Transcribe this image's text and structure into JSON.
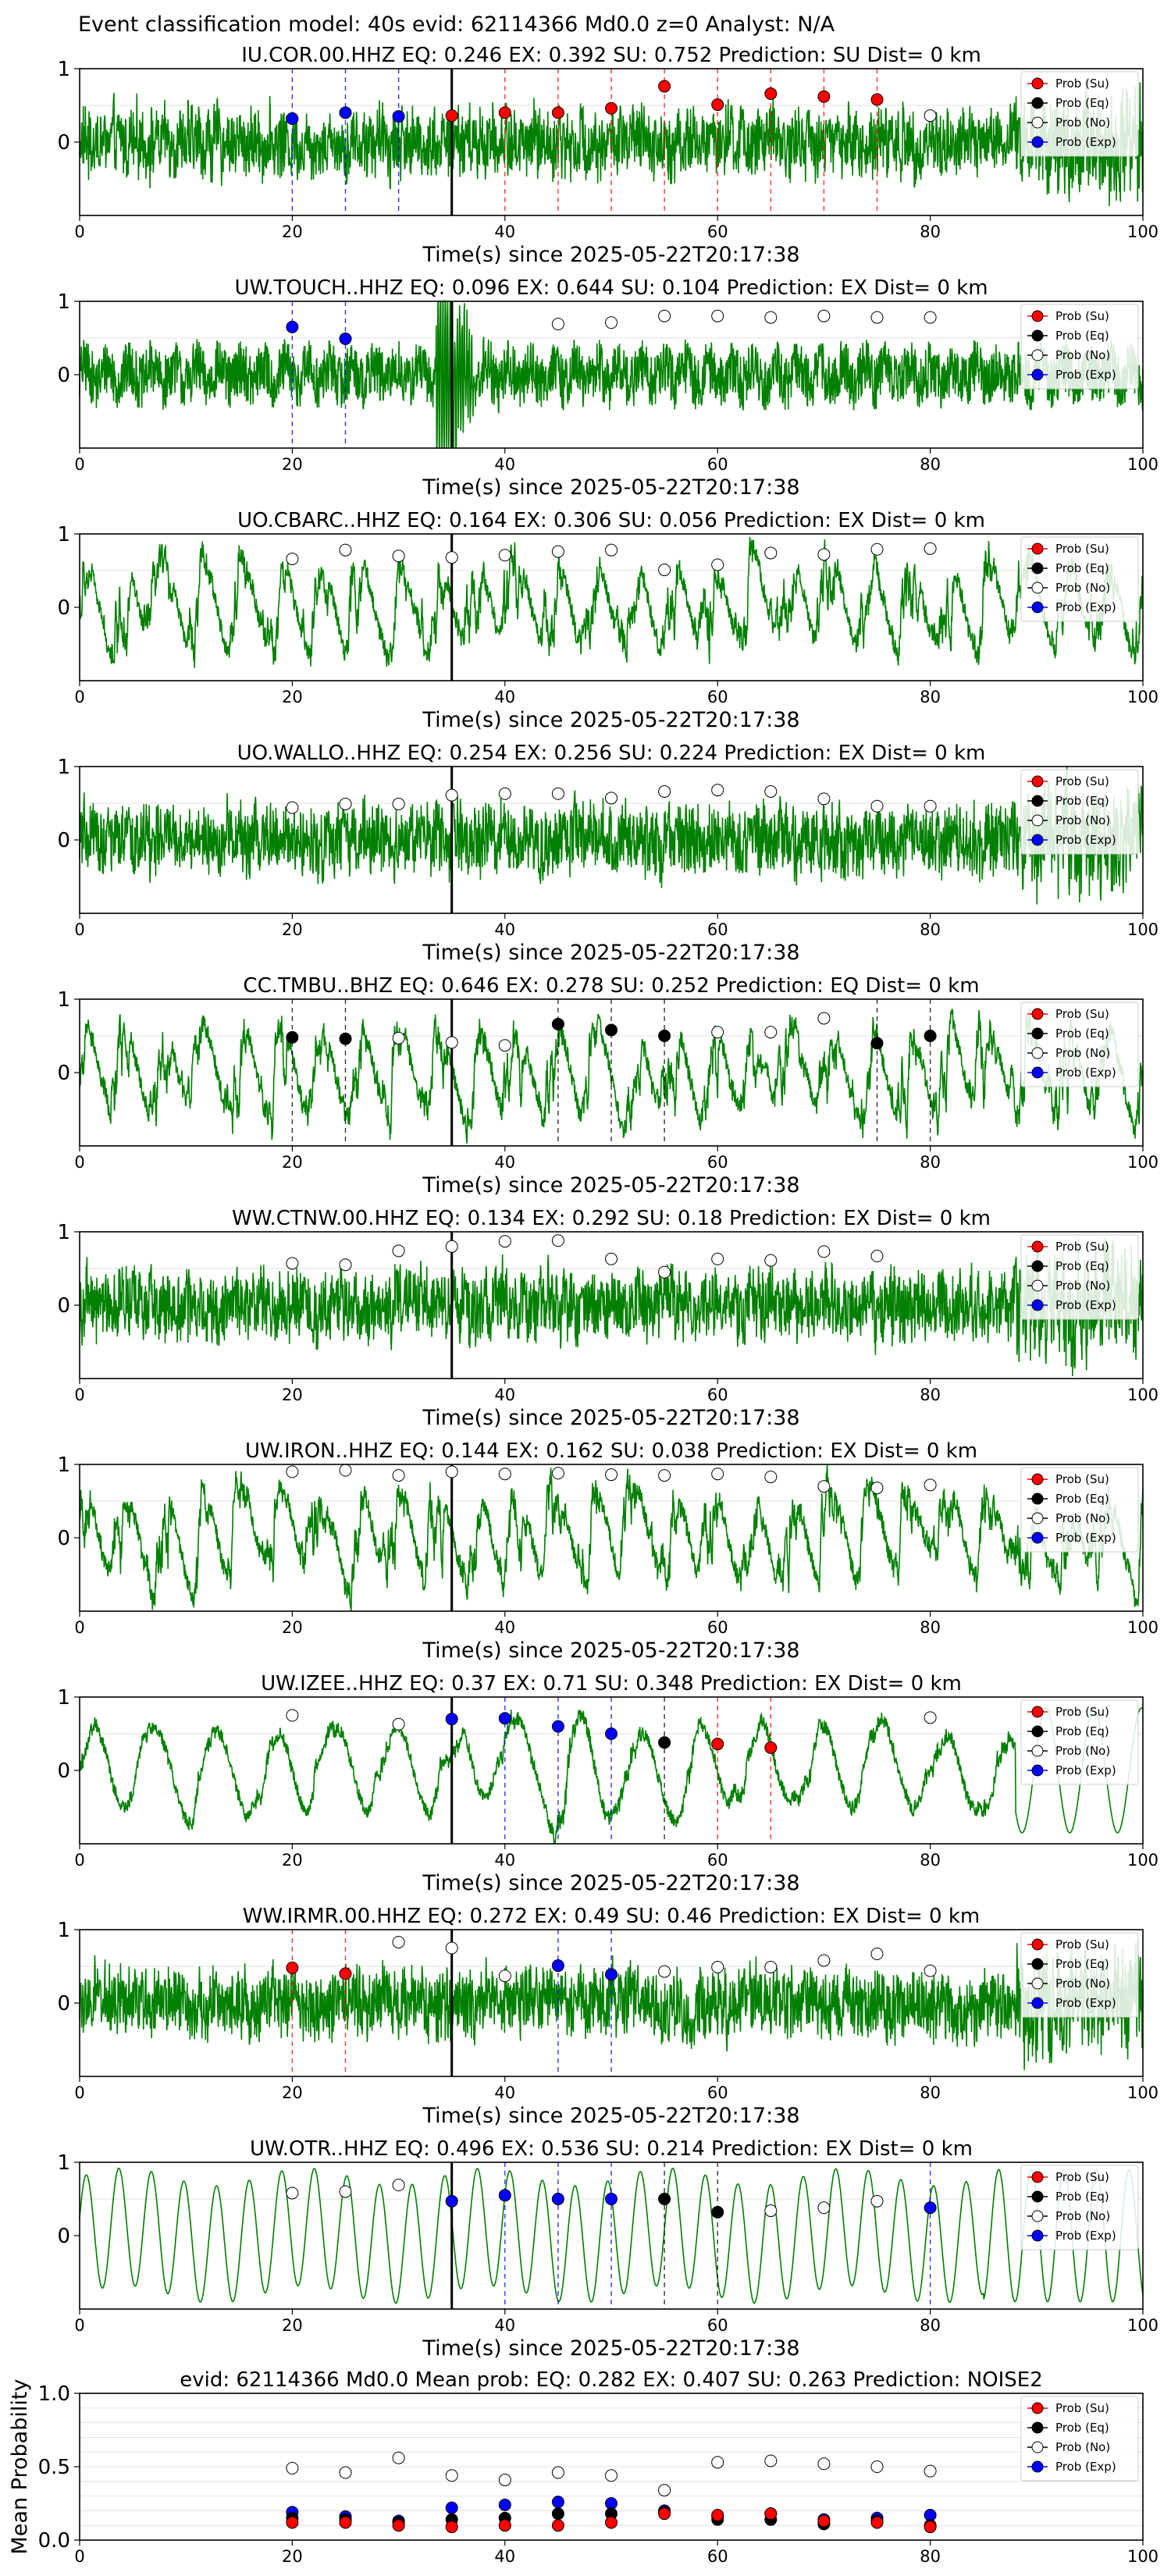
{
  "suptitle": "Event classification model: 40s evid: 62114366 Md0.0 z=0 Analyst: N/A",
  "colors": {
    "trace": "#008000",
    "su": "#ff0000",
    "eq": "#000000",
    "no": "#ffffff",
    "exp": "#0000ff",
    "grid": "#d9d9d9",
    "onset": "#000000"
  },
  "legend": [
    "Prob (Su)",
    "Prob (Eq)",
    "Prob (No)",
    "Prob (Exp)"
  ],
  "chart_data": [
    {
      "type": "scatter",
      "title": "IU.COR.00.HHZ   EQ: 0.246  EX: 0.392  SU: 0.752   Prediction: SU    Dist= 0 km",
      "xlabel": "Time(s) since 2025-05-22T20:17:38",
      "xlim": [
        0,
        100
      ],
      "ylim": [
        -1,
        1
      ],
      "xticks": [
        0,
        20,
        40,
        60,
        80,
        100
      ],
      "yticks": [
        0,
        1
      ],
      "onset": 35,
      "trace_style": "dense",
      "points": [
        {
          "x": 20,
          "y": 0.32,
          "cls": "exp"
        },
        {
          "x": 25,
          "y": 0.4,
          "cls": "exp"
        },
        {
          "x": 30,
          "y": 0.35,
          "cls": "exp"
        },
        {
          "x": 35,
          "y": 0.36,
          "cls": "su"
        },
        {
          "x": 40,
          "y": 0.4,
          "cls": "su"
        },
        {
          "x": 45,
          "y": 0.4,
          "cls": "su"
        },
        {
          "x": 50,
          "y": 0.46,
          "cls": "su"
        },
        {
          "x": 55,
          "y": 0.76,
          "cls": "su"
        },
        {
          "x": 60,
          "y": 0.51,
          "cls": "su"
        },
        {
          "x": 65,
          "y": 0.66,
          "cls": "su"
        },
        {
          "x": 70,
          "y": 0.62,
          "cls": "su"
        },
        {
          "x": 75,
          "y": 0.58,
          "cls": "su"
        },
        {
          "x": 80,
          "y": 0.36,
          "cls": "no"
        }
      ]
    },
    {
      "type": "scatter",
      "title": "UW.TOUCH..HHZ   EQ: 0.096  EX: 0.644  SU: 0.104   Prediction: EX    Dist= 0 km",
      "xlabel": "Time(s) since 2025-05-22T20:17:38",
      "xlim": [
        0,
        100
      ],
      "ylim": [
        -1,
        1
      ],
      "xticks": [
        0,
        20,
        40,
        60,
        80,
        100
      ],
      "yticks": [
        0,
        1
      ],
      "onset": 35,
      "trace_style": "burst",
      "points": [
        {
          "x": 20,
          "y": 0.65,
          "cls": "exp"
        },
        {
          "x": 25,
          "y": 0.49,
          "cls": "exp"
        },
        {
          "x": 45,
          "y": 0.69,
          "cls": "no"
        },
        {
          "x": 50,
          "y": 0.71,
          "cls": "no"
        },
        {
          "x": 55,
          "y": 0.8,
          "cls": "no"
        },
        {
          "x": 60,
          "y": 0.8,
          "cls": "no"
        },
        {
          "x": 65,
          "y": 0.78,
          "cls": "no"
        },
        {
          "x": 70,
          "y": 0.8,
          "cls": "no"
        },
        {
          "x": 75,
          "y": 0.78,
          "cls": "no"
        },
        {
          "x": 80,
          "y": 0.78,
          "cls": "no"
        }
      ]
    },
    {
      "type": "scatter",
      "title": "UO.CBARC..HHZ   EQ: 0.164  EX: 0.306  SU: 0.056   Prediction: EX    Dist= 0 km",
      "xlabel": "Time(s) since 2025-05-22T20:17:38",
      "xlim": [
        0,
        100
      ],
      "ylim": [
        -1,
        1
      ],
      "xticks": [
        0,
        20,
        40,
        60,
        80,
        100
      ],
      "yticks": [
        0,
        1
      ],
      "onset": 35,
      "trace_style": "smooth",
      "points": [
        {
          "x": 20,
          "y": 0.66,
          "cls": "no"
        },
        {
          "x": 25,
          "y": 0.78,
          "cls": "no"
        },
        {
          "x": 30,
          "y": 0.7,
          "cls": "no"
        },
        {
          "x": 35,
          "y": 0.68,
          "cls": "no"
        },
        {
          "x": 40,
          "y": 0.71,
          "cls": "no"
        },
        {
          "x": 45,
          "y": 0.76,
          "cls": "no"
        },
        {
          "x": 50,
          "y": 0.78,
          "cls": "no"
        },
        {
          "x": 55,
          "y": 0.51,
          "cls": "no"
        },
        {
          "x": 60,
          "y": 0.58,
          "cls": "no"
        },
        {
          "x": 65,
          "y": 0.74,
          "cls": "no"
        },
        {
          "x": 70,
          "y": 0.72,
          "cls": "no"
        },
        {
          "x": 75,
          "y": 0.79,
          "cls": "no"
        },
        {
          "x": 80,
          "y": 0.8,
          "cls": "no"
        }
      ]
    },
    {
      "type": "scatter",
      "title": "UO.WALLO..HHZ   EQ: 0.254  EX: 0.256  SU: 0.224   Prediction: EX    Dist= 0 km",
      "xlabel": "Time(s) since 2025-05-22T20:17:38",
      "xlim": [
        0,
        100
      ],
      "ylim": [
        -1,
        1
      ],
      "xticks": [
        0,
        20,
        40,
        60,
        80,
        100
      ],
      "yticks": [
        0,
        1
      ],
      "onset": 35,
      "trace_style": "dense",
      "points": [
        {
          "x": 20,
          "y": 0.44,
          "cls": "no"
        },
        {
          "x": 25,
          "y": 0.49,
          "cls": "no"
        },
        {
          "x": 30,
          "y": 0.49,
          "cls": "no"
        },
        {
          "x": 35,
          "y": 0.61,
          "cls": "no"
        },
        {
          "x": 40,
          "y": 0.63,
          "cls": "no"
        },
        {
          "x": 45,
          "y": 0.63,
          "cls": "no"
        },
        {
          "x": 50,
          "y": 0.57,
          "cls": "no"
        },
        {
          "x": 55,
          "y": 0.66,
          "cls": "no"
        },
        {
          "x": 60,
          "y": 0.68,
          "cls": "no"
        },
        {
          "x": 65,
          "y": 0.66,
          "cls": "no"
        },
        {
          "x": 70,
          "y": 0.56,
          "cls": "no"
        },
        {
          "x": 75,
          "y": 0.46,
          "cls": "no"
        },
        {
          "x": 80,
          "y": 0.46,
          "cls": "no"
        }
      ]
    },
    {
      "type": "scatter",
      "title": "CC.TMBU..BHZ   EQ: 0.646  EX: 0.278  SU: 0.252   Prediction: EQ    Dist= 0 km",
      "xlabel": "Time(s) since 2025-05-22T20:17:38",
      "xlim": [
        0,
        100
      ],
      "ylim": [
        -1,
        1
      ],
      "xticks": [
        0,
        20,
        40,
        60,
        80,
        100
      ],
      "yticks": [
        0,
        1
      ],
      "onset": 35,
      "trace_style": "smooth",
      "points": [
        {
          "x": 20,
          "y": 0.48,
          "cls": "eq"
        },
        {
          "x": 25,
          "y": 0.46,
          "cls": "eq"
        },
        {
          "x": 30,
          "y": 0.47,
          "cls": "no"
        },
        {
          "x": 35,
          "y": 0.41,
          "cls": "no"
        },
        {
          "x": 40,
          "y": 0.37,
          "cls": "no"
        },
        {
          "x": 45,
          "y": 0.66,
          "cls": "eq"
        },
        {
          "x": 50,
          "y": 0.58,
          "cls": "eq"
        },
        {
          "x": 55,
          "y": 0.5,
          "cls": "eq"
        },
        {
          "x": 60,
          "y": 0.55,
          "cls": "no"
        },
        {
          "x": 65,
          "y": 0.55,
          "cls": "no"
        },
        {
          "x": 70,
          "y": 0.74,
          "cls": "no"
        },
        {
          "x": 75,
          "y": 0.4,
          "cls": "eq"
        },
        {
          "x": 80,
          "y": 0.5,
          "cls": "eq"
        }
      ]
    },
    {
      "type": "scatter",
      "title": "WW.CTNW.00.HHZ   EQ: 0.134  EX: 0.292  SU: 0.18   Prediction: EX    Dist= 0 km",
      "xlabel": "Time(s) since 2025-05-22T20:17:38",
      "xlim": [
        0,
        100
      ],
      "ylim": [
        -1,
        1
      ],
      "xticks": [
        0,
        20,
        40,
        60,
        80,
        100
      ],
      "yticks": [
        0,
        1
      ],
      "onset": 35,
      "trace_style": "dense",
      "points": [
        {
          "x": 20,
          "y": 0.57,
          "cls": "no"
        },
        {
          "x": 25,
          "y": 0.55,
          "cls": "no"
        },
        {
          "x": 30,
          "y": 0.74,
          "cls": "no"
        },
        {
          "x": 35,
          "y": 0.8,
          "cls": "no"
        },
        {
          "x": 40,
          "y": 0.87,
          "cls": "no"
        },
        {
          "x": 45,
          "y": 0.88,
          "cls": "no"
        },
        {
          "x": 50,
          "y": 0.63,
          "cls": "no"
        },
        {
          "x": 55,
          "y": 0.45,
          "cls": "no"
        },
        {
          "x": 60,
          "y": 0.63,
          "cls": "no"
        },
        {
          "x": 65,
          "y": 0.61,
          "cls": "no"
        },
        {
          "x": 70,
          "y": 0.73,
          "cls": "no"
        },
        {
          "x": 75,
          "y": 0.67,
          "cls": "no"
        }
      ]
    },
    {
      "type": "scatter",
      "title": "UW.IRON..HHZ   EQ: 0.144  EX: 0.162  SU: 0.038   Prediction: EX    Dist= 0 km",
      "xlabel": "Time(s) since 2025-05-22T20:17:38",
      "xlim": [
        0,
        100
      ],
      "ylim": [
        -1,
        1
      ],
      "xticks": [
        0,
        20,
        40,
        60,
        80,
        100
      ],
      "yticks": [
        0,
        1
      ],
      "onset": 35,
      "trace_style": "smooth",
      "points": [
        {
          "x": 20,
          "y": 0.9,
          "cls": "no"
        },
        {
          "x": 25,
          "y": 0.92,
          "cls": "no"
        },
        {
          "x": 30,
          "y": 0.85,
          "cls": "no"
        },
        {
          "x": 35,
          "y": 0.9,
          "cls": "no"
        },
        {
          "x": 40,
          "y": 0.87,
          "cls": "no"
        },
        {
          "x": 45,
          "y": 0.88,
          "cls": "no"
        },
        {
          "x": 50,
          "y": 0.86,
          "cls": "no"
        },
        {
          "x": 55,
          "y": 0.85,
          "cls": "no"
        },
        {
          "x": 60,
          "y": 0.87,
          "cls": "no"
        },
        {
          "x": 65,
          "y": 0.83,
          "cls": "no"
        },
        {
          "x": 70,
          "y": 0.7,
          "cls": "no"
        },
        {
          "x": 75,
          "y": 0.68,
          "cls": "no"
        },
        {
          "x": 80,
          "y": 0.72,
          "cls": "no"
        }
      ]
    },
    {
      "type": "scatter",
      "title": "UW.IZEE..HHZ   EQ: 0.37  EX: 0.71  SU: 0.348   Prediction: EX    Dist= 0 km",
      "xlabel": "Time(s) since 2025-05-22T20:17:38",
      "xlim": [
        0,
        100
      ],
      "ylim": [
        -1,
        1
      ],
      "xticks": [
        0,
        20,
        40,
        60,
        80,
        100
      ],
      "yticks": [
        0,
        1
      ],
      "onset": 35,
      "trace_style": "lowfreq",
      "points": [
        {
          "x": 20,
          "y": 0.75,
          "cls": "no"
        },
        {
          "x": 30,
          "y": 0.63,
          "cls": "no"
        },
        {
          "x": 35,
          "y": 0.7,
          "cls": "exp"
        },
        {
          "x": 40,
          "y": 0.71,
          "cls": "exp"
        },
        {
          "x": 45,
          "y": 0.6,
          "cls": "exp"
        },
        {
          "x": 50,
          "y": 0.5,
          "cls": "exp"
        },
        {
          "x": 55,
          "y": 0.38,
          "cls": "eq"
        },
        {
          "x": 60,
          "y": 0.36,
          "cls": "su"
        },
        {
          "x": 65,
          "y": 0.31,
          "cls": "su"
        },
        {
          "x": 80,
          "y": 0.72,
          "cls": "no"
        }
      ]
    },
    {
      "type": "scatter",
      "title": "WW.IRMR.00.HHZ   EQ: 0.272  EX: 0.49  SU: 0.46   Prediction: EX    Dist= 0 km",
      "xlabel": "Time(s) since 2025-05-22T20:17:38",
      "xlim": [
        0,
        100
      ],
      "ylim": [
        -1,
        1
      ],
      "xticks": [
        0,
        20,
        40,
        60,
        80,
        100
      ],
      "yticks": [
        0,
        1
      ],
      "onset": 35,
      "trace_style": "dense",
      "points": [
        {
          "x": 20,
          "y": 0.48,
          "cls": "su"
        },
        {
          "x": 25,
          "y": 0.4,
          "cls": "su"
        },
        {
          "x": 30,
          "y": 0.83,
          "cls": "no"
        },
        {
          "x": 35,
          "y": 0.75,
          "cls": "no"
        },
        {
          "x": 40,
          "y": 0.37,
          "cls": "no"
        },
        {
          "x": 45,
          "y": 0.51,
          "cls": "exp"
        },
        {
          "x": 50,
          "y": 0.39,
          "cls": "exp"
        },
        {
          "x": 55,
          "y": 0.43,
          "cls": "no"
        },
        {
          "x": 60,
          "y": 0.49,
          "cls": "no"
        },
        {
          "x": 65,
          "y": 0.49,
          "cls": "no"
        },
        {
          "x": 70,
          "y": 0.58,
          "cls": "no"
        },
        {
          "x": 75,
          "y": 0.67,
          "cls": "no"
        },
        {
          "x": 80,
          "y": 0.44,
          "cls": "no"
        }
      ]
    },
    {
      "type": "scatter",
      "title": "UW.OTR..HHZ   EQ: 0.496  EX: 0.536  SU: 0.214   Prediction: EX    Dist= 0 km",
      "xlabel": "Time(s) since 2025-05-22T20:17:38",
      "xlim": [
        0,
        100
      ],
      "ylim": [
        -1,
        1
      ],
      "xticks": [
        0,
        20,
        40,
        60,
        80,
        100
      ],
      "yticks": [
        0,
        1
      ],
      "onset": 35,
      "trace_style": "sine",
      "points": [
        {
          "x": 20,
          "y": 0.58,
          "cls": "no"
        },
        {
          "x": 25,
          "y": 0.6,
          "cls": "no"
        },
        {
          "x": 30,
          "y": 0.69,
          "cls": "no"
        },
        {
          "x": 35,
          "y": 0.47,
          "cls": "exp"
        },
        {
          "x": 40,
          "y": 0.55,
          "cls": "exp"
        },
        {
          "x": 45,
          "y": 0.5,
          "cls": "exp"
        },
        {
          "x": 50,
          "y": 0.5,
          "cls": "exp"
        },
        {
          "x": 55,
          "y": 0.5,
          "cls": "eq"
        },
        {
          "x": 60,
          "y": 0.32,
          "cls": "eq"
        },
        {
          "x": 65,
          "y": 0.34,
          "cls": "no"
        },
        {
          "x": 70,
          "y": 0.38,
          "cls": "no"
        },
        {
          "x": 75,
          "y": 0.47,
          "cls": "no"
        },
        {
          "x": 80,
          "y": 0.38,
          "cls": "exp"
        }
      ]
    },
    {
      "type": "scatter",
      "title": "evid: 62114366  Md0.0   Mean prob:   EQ: 0.282  EX: 0.407  SU: 0.263   Prediction: NOISE2",
      "xlabel": "",
      "ylabel": "Mean Probability",
      "xlim": [
        0,
        100
      ],
      "ylim": [
        0,
        1
      ],
      "xticks": [
        0,
        20,
        40,
        60,
        80,
        100
      ],
      "yticks": [
        0.0,
        0.5,
        1.0
      ],
      "ytick_labels": [
        "0.0",
        "0.5",
        "1.0"
      ],
      "x": [
        20,
        25,
        30,
        35,
        40,
        45,
        50,
        55,
        60,
        65,
        70,
        75,
        80
      ],
      "series": [
        {
          "name": "Prob (No)",
          "cls": "no",
          "values": [
            0.49,
            0.46,
            0.56,
            0.44,
            0.41,
            0.46,
            0.44,
            0.34,
            0.53,
            0.54,
            0.52,
            0.5,
            0.47
          ]
        },
        {
          "name": "Prob (Exp)",
          "cls": "exp",
          "values": [
            0.19,
            0.16,
            0.13,
            0.22,
            0.24,
            0.26,
            0.25,
            0.2,
            0.16,
            0.18,
            0.14,
            0.15,
            0.17
          ]
        },
        {
          "name": "Prob (Eq)",
          "cls": "eq",
          "values": [
            0.15,
            0.14,
            0.12,
            0.14,
            0.15,
            0.18,
            0.18,
            0.19,
            0.14,
            0.14,
            0.11,
            0.13,
            0.1
          ]
        },
        {
          "name": "Prob (Su)",
          "cls": "su",
          "values": [
            0.12,
            0.12,
            0.1,
            0.09,
            0.1,
            0.1,
            0.12,
            0.18,
            0.17,
            0.18,
            0.13,
            0.12,
            0.09
          ]
        }
      ]
    }
  ]
}
